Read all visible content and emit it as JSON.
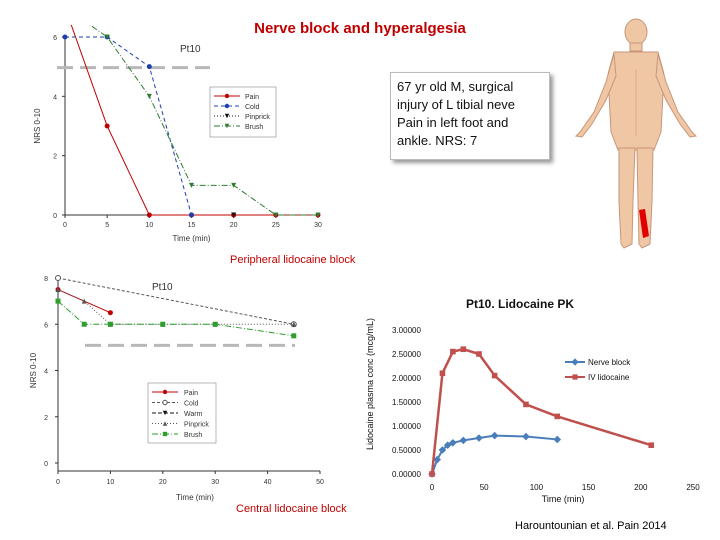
{
  "slide": {
    "title": "Nerve block and hyperalgesia",
    "callout_text": "67 yr old M, surgical injury of L tibial neve Pain in left foot and ankle. NRS: 7",
    "caption_peripheral": "Peripheral lidocaine block",
    "caption_central": "Central lidocaine block",
    "citation": "Harountounian et al.  Pain 2014"
  },
  "chart_data": [
    {
      "type": "line",
      "title": "Pt10",
      "xlabel": "Time (min)",
      "ylabel": "NRS 0-10",
      "xlim": [
        0,
        30
      ],
      "ylim": [
        0,
        6
      ],
      "xticks": [
        "0",
        "5",
        "10",
        "15",
        "20",
        "25",
        "30"
      ],
      "yticks": [
        "0",
        "2",
        "4",
        "6"
      ],
      "legend": "center-right",
      "series": [
        {
          "name": "Pain",
          "color": "#c00000",
          "x": [
            0,
            5,
            10,
            15,
            20,
            25,
            30
          ],
          "values": [
            7,
            3,
            0,
            0,
            0,
            0,
            0
          ]
        },
        {
          "name": "Cold",
          "color": "#1f3fb0",
          "x": [
            0,
            5,
            10,
            15
          ],
          "values": [
            6,
            6,
            5,
            0
          ]
        },
        {
          "name": "Pinprick",
          "color": "#111111",
          "x": [
            20
          ],
          "values": [
            0
          ]
        },
        {
          "name": "Brush",
          "color": "#2e7d32",
          "x": [
            0,
            5,
            10,
            15,
            20,
            25,
            30
          ],
          "values": [
            7,
            6,
            4,
            1,
            1,
            0,
            0
          ]
        }
      ],
      "reference_line_y": 5
    },
    {
      "type": "line",
      "title": "Pt10",
      "xlabel": "Time (min)",
      "ylabel": "NRS 0-10",
      "xlim": [
        0,
        50
      ],
      "ylim": [
        0,
        8
      ],
      "xticks": [
        "0",
        "10",
        "20",
        "30",
        "40",
        "50"
      ],
      "yticks": [
        "0",
        "2",
        "4",
        "6",
        "8"
      ],
      "legend": "left",
      "series": [
        {
          "name": "Pain",
          "color": "#c00000",
          "x": [
            0,
            10
          ],
          "values": [
            7.5,
            6.5
          ]
        },
        {
          "name": "Cold",
          "color": "#555555",
          "x": [
            0,
            45
          ],
          "values": [
            8,
            6
          ]
        },
        {
          "name": "Warm",
          "color": "#111111",
          "x": [],
          "values": []
        },
        {
          "name": "Pinprick",
          "color": "#555555",
          "x": [
            0,
            5,
            10,
            20,
            30,
            45
          ],
          "values": [
            7.5,
            7,
            6,
            6,
            6,
            6
          ]
        },
        {
          "name": "Brush",
          "color": "#2e9e2e",
          "x": [
            0,
            5,
            10,
            20,
            30,
            45
          ],
          "values": [
            7,
            6,
            6,
            6,
            6,
            5.5
          ]
        }
      ],
      "reference_line_y": 5
    },
    {
      "type": "line",
      "title": "Pt10. Lidocaine PK",
      "xlabel": "Time (min)",
      "ylabel": "Lidocaine plasma conc (mcg/mL)",
      "xlim": [
        0,
        250
      ],
      "ylim": [
        0,
        3
      ],
      "xticks": [
        "0",
        "50",
        "100",
        "150",
        "200",
        "250"
      ],
      "yticks": [
        "0.00000",
        "0.50000",
        "1.00000",
        "1.50000",
        "2.00000",
        "2.50000",
        "3.00000"
      ],
      "legend": "right",
      "series": [
        {
          "name": "Nerve block",
          "color": "#4a7ebb",
          "marker": "diamond",
          "x": [
            0,
            5,
            10,
            15,
            20,
            30,
            45,
            60,
            90,
            120
          ],
          "values": [
            0,
            0.3,
            0.5,
            0.6,
            0.65,
            0.7,
            0.75,
            0.8,
            0.78,
            0.72
          ]
        },
        {
          "name": "IV lidocaine",
          "color": "#c0504d",
          "marker": "square",
          "x": [
            0,
            10,
            20,
            30,
            45,
            60,
            90,
            120,
            210
          ],
          "values": [
            0,
            2.1,
            2.55,
            2.6,
            2.5,
            2.05,
            1.45,
            1.2,
            0.6
          ]
        }
      ]
    }
  ]
}
